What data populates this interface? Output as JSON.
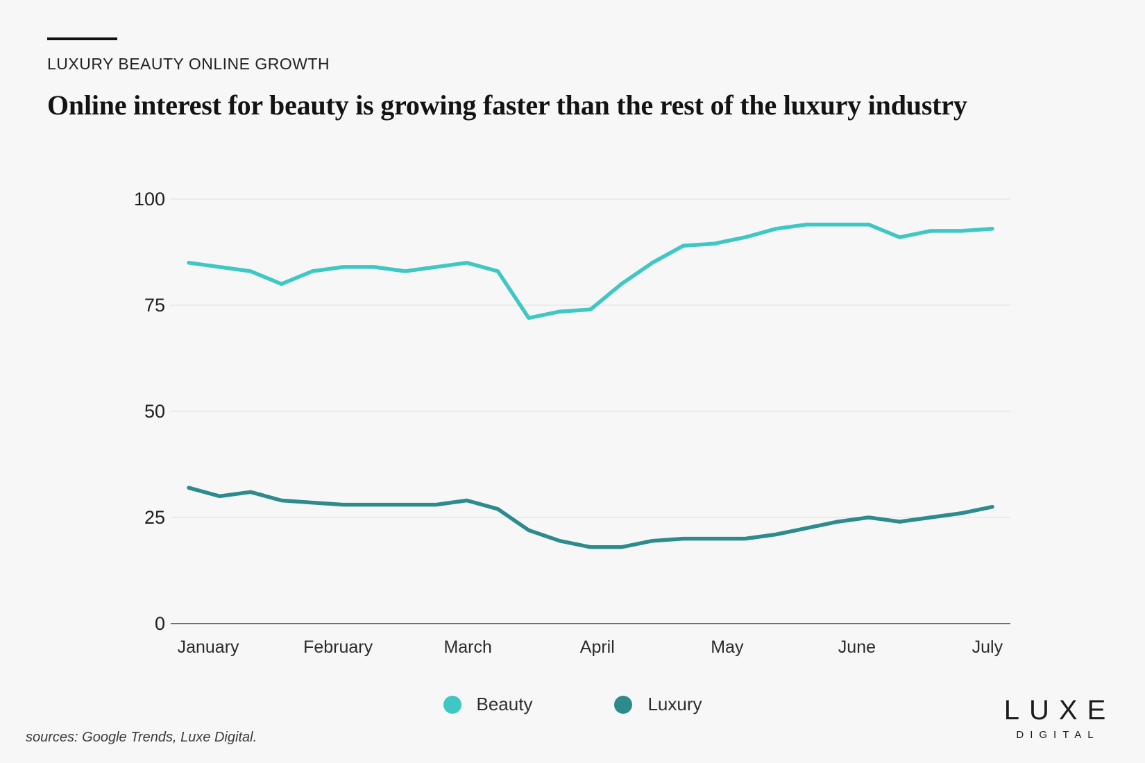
{
  "page": {
    "background": "#f7f7f7"
  },
  "header": {
    "eyebrow": "LUXURY BEAUTY ONLINE GROWTH",
    "title": "Online interest for beauty is growing faster than the rest of the luxury industry"
  },
  "chart_data": {
    "type": "line",
    "title": "Online interest for beauty is growing faster than the rest of the luxury industry",
    "xlabel": "",
    "ylabel": "",
    "ylim": [
      0,
      100
    ],
    "y_ticks": [
      0,
      25,
      50,
      75,
      100
    ],
    "grid": "horizontal",
    "legend_position": "bottom",
    "x_unit": "weeks",
    "x_tick_labels": [
      "January",
      "February",
      "March",
      "April",
      "May",
      "June",
      "July"
    ],
    "x_tick_positions_weeks": [
      0.63,
      4.83,
      9.03,
      13.22,
      17.42,
      21.62,
      25.84
    ],
    "series": [
      {
        "name": "Beauty",
        "color": "#3fc8c3",
        "values": [
          85,
          84,
          83,
          80,
          83,
          84,
          84,
          83,
          84,
          85,
          83,
          72,
          73.5,
          74,
          80,
          85,
          89,
          89.5,
          91,
          93,
          94,
          94,
          94,
          91,
          92.5,
          92.5,
          93
        ]
      },
      {
        "name": "Luxury",
        "color": "#2e8b8d",
        "values": [
          32,
          30,
          31,
          29,
          28.5,
          28,
          28,
          28,
          28,
          29,
          27,
          22,
          19.5,
          18,
          18,
          19.5,
          20,
          20,
          20,
          21,
          22.5,
          24,
          25,
          24,
          25,
          26,
          27.5
        ]
      }
    ]
  },
  "legend": {
    "items": [
      {
        "label": "Beauty",
        "color": "#3fc8c3"
      },
      {
        "label": "Luxury",
        "color": "#2e8b8d"
      }
    ]
  },
  "footer": {
    "sources": "sources: Google Trends, Luxe Digital.",
    "logo_line1": "LUXE",
    "logo_line2": "DIGITAL"
  }
}
